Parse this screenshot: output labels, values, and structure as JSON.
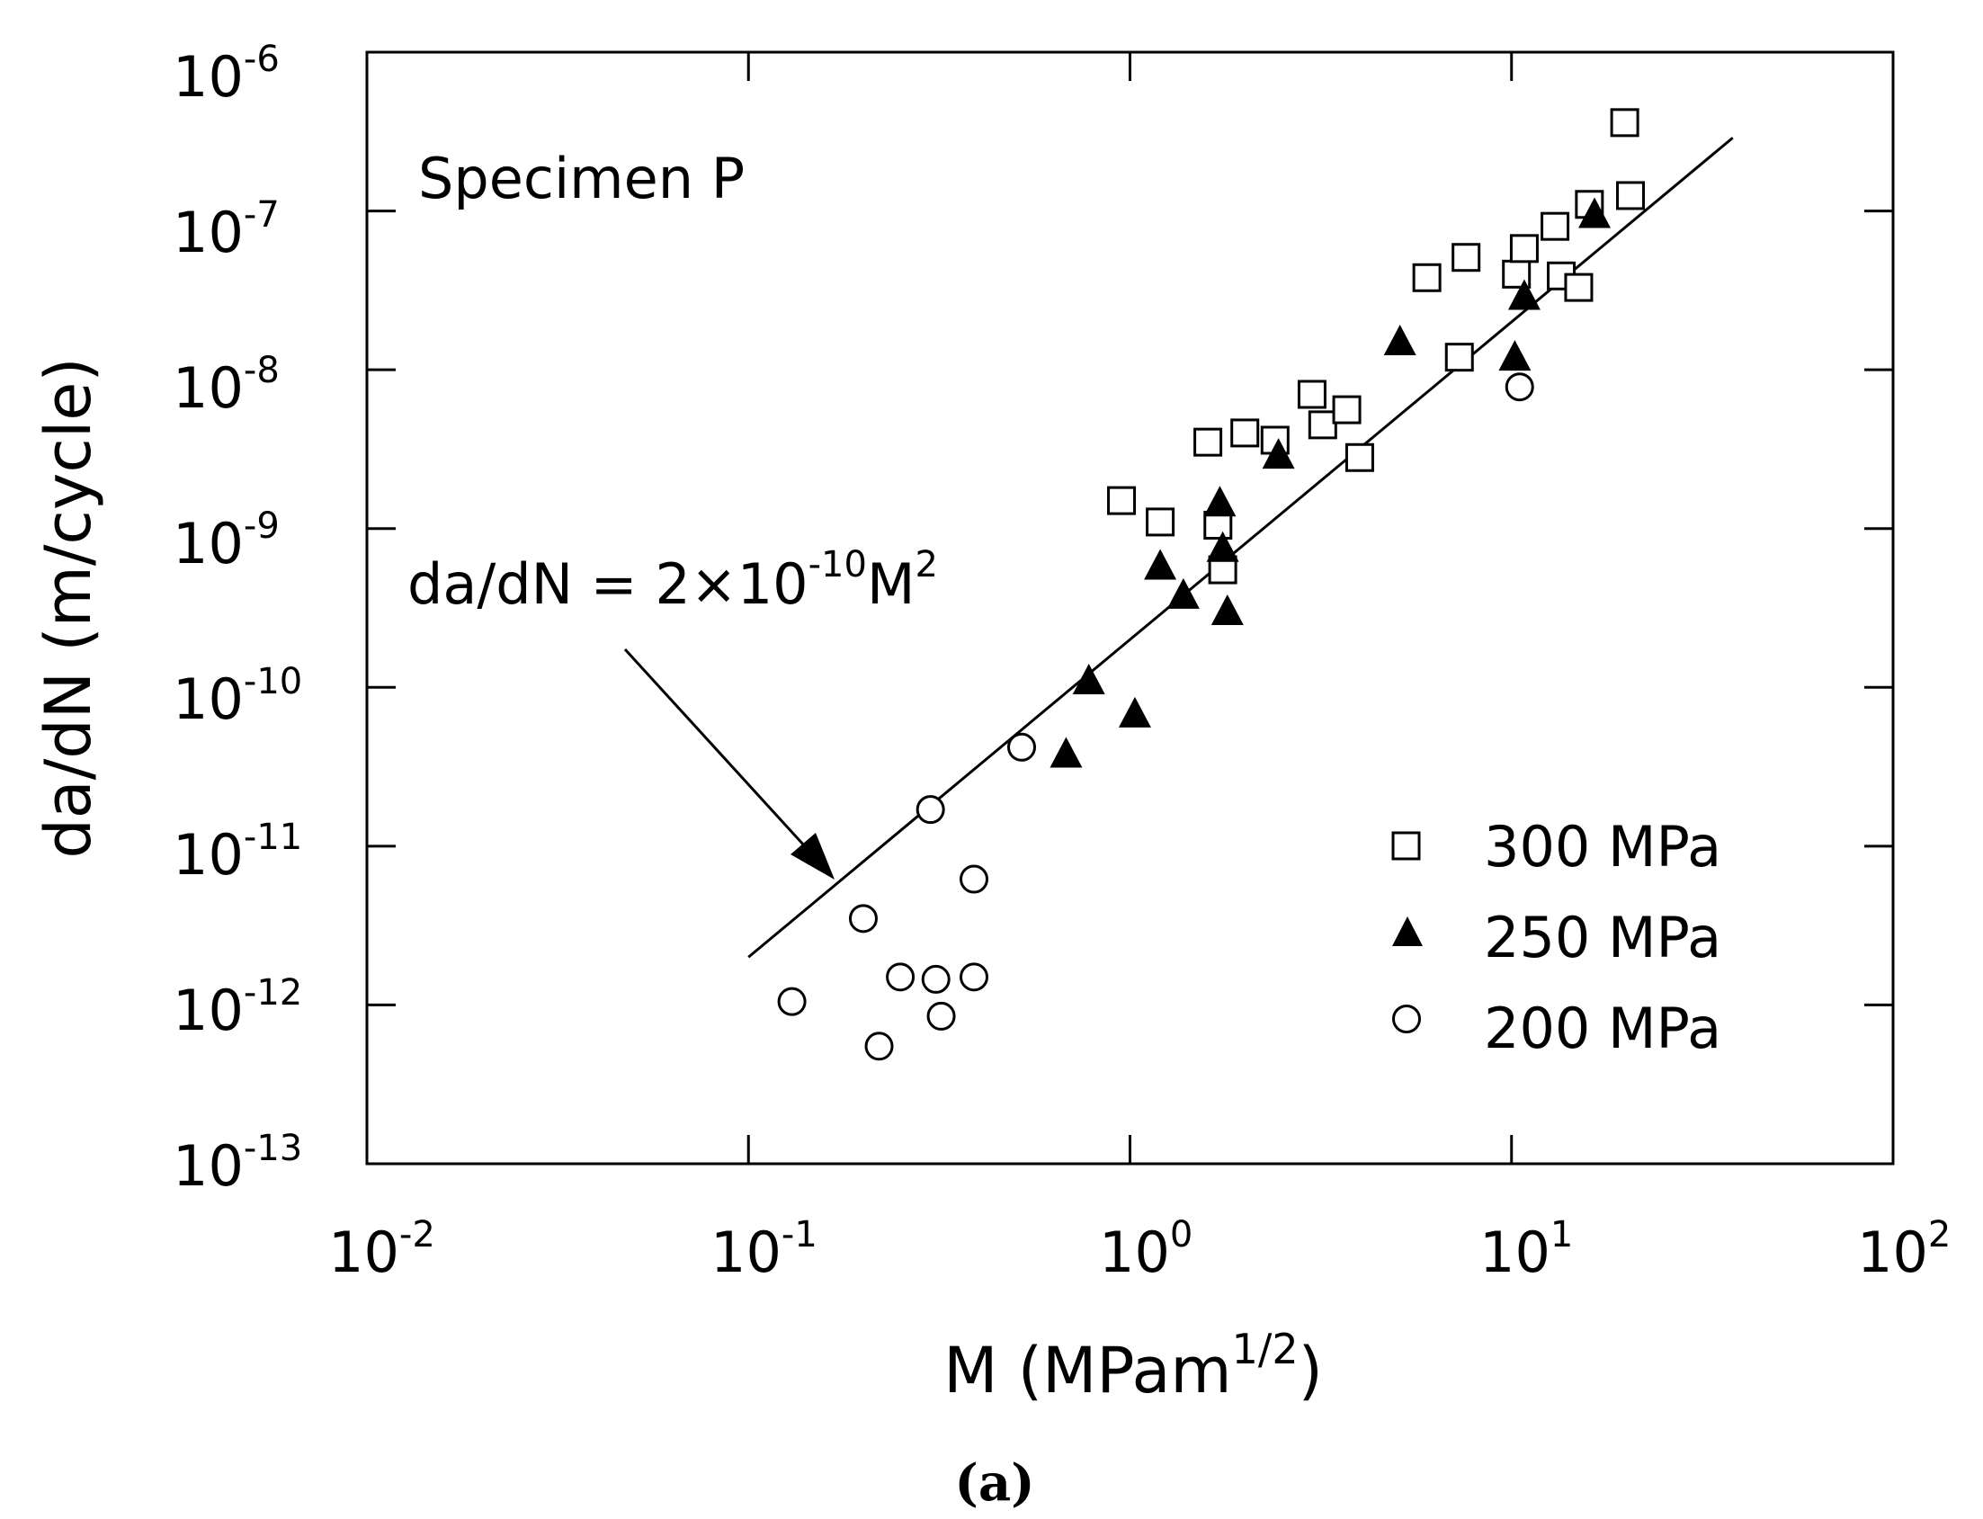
{
  "chart_data": {
    "type": "scatter",
    "x_scale": "log",
    "y_scale": "log",
    "xlim": [
      0.01,
      100
    ],
    "ylim": [
      1e-13,
      1e-06
    ],
    "x_ticks": [
      {
        "value": 0.01,
        "base": "10",
        "exp": "-2"
      },
      {
        "value": 0.1,
        "base": "10",
        "exp": "-1"
      },
      {
        "value": 1,
        "base": "10",
        "exp": "0"
      },
      {
        "value": 10,
        "base": "10",
        "exp": "1"
      },
      {
        "value": 100,
        "base": "10",
        "exp": "2"
      }
    ],
    "y_ticks": [
      {
        "value": 1e-13,
        "base": "10",
        "exp": "-13"
      },
      {
        "value": 1e-12,
        "base": "10",
        "exp": "-12"
      },
      {
        "value": 1e-11,
        "base": "10",
        "exp": "-11"
      },
      {
        "value": 1e-10,
        "base": "10",
        "exp": "-10"
      },
      {
        "value": 1e-09,
        "base": "10",
        "exp": "-9"
      },
      {
        "value": 1e-08,
        "base": "10",
        "exp": "-8"
      },
      {
        "value": 1e-07,
        "base": "10",
        "exp": "-7"
      },
      {
        "value": 1e-06,
        "base": "10",
        "exp": "-6"
      }
    ],
    "xlabel": {
      "main": "M (MPam",
      "sup": "1/2",
      "end": ")"
    },
    "ylabel": "da/dN (m/cycle)",
    "annotation": "Specimen P",
    "fit_line": {
      "label_parts": {
        "a": "da/dN = 2×10",
        "sup1": "-10",
        "b": "M",
        "sup2": "2"
      },
      "coefficient": 2e-10,
      "exponent": 2,
      "x_range": [
        0.1,
        38
      ]
    },
    "legend_position": "bottom-right",
    "series": [
      {
        "name": "300 MPa",
        "marker": "open-square",
        "points": [
          [
            0.95,
            1.5e-09
          ],
          [
            1.2,
            1.1e-09
          ],
          [
            1.6,
            3.5e-09
          ],
          [
            1.7,
            1.05e-09
          ],
          [
            1.75,
            5.5e-10
          ],
          [
            2.0,
            4e-09
          ],
          [
            2.4,
            3.6e-09
          ],
          [
            3.0,
            7e-09
          ],
          [
            3.2,
            4.5e-09
          ],
          [
            3.7,
            5.6e-09
          ],
          [
            4.0,
            2.8e-09
          ],
          [
            6.0,
            3.8e-08
          ],
          [
            7.3,
            1.2e-08
          ],
          [
            7.6,
            5.1e-08
          ],
          [
            10.3,
            4e-08
          ],
          [
            10.8,
            5.8e-08
          ],
          [
            13.0,
            8e-08
          ],
          [
            13.5,
            3.9e-08
          ],
          [
            15.0,
            3.3e-08
          ],
          [
            16.0,
            1.1e-07
          ],
          [
            19.8,
            3.6e-07
          ],
          [
            20.5,
            1.25e-07
          ]
        ]
      },
      {
        "name": "250 MPa",
        "marker": "filled-triangle",
        "points": [
          [
            0.68,
            3.8e-11
          ],
          [
            0.78,
            1.1e-10
          ],
          [
            1.03,
            6.8e-11
          ],
          [
            1.2,
            5.8e-10
          ],
          [
            1.38,
            3.8e-10
          ],
          [
            1.72,
            1.45e-09
          ],
          [
            1.75,
            7.5e-10
          ],
          [
            1.8,
            3e-10
          ],
          [
            2.45,
            2.9e-09
          ],
          [
            5.1,
            1.5e-08
          ],
          [
            10.2,
            1.2e-08
          ],
          [
            10.8,
            2.9e-08
          ],
          [
            16.5,
            9.5e-08
          ]
        ]
      },
      {
        "name": "200 MPa",
        "marker": "open-circle",
        "points": [
          [
            0.13,
            1.05e-12
          ],
          [
            0.2,
            3.5e-12
          ],
          [
            0.22,
            5.5e-13
          ],
          [
            0.25,
            1.5e-12
          ],
          [
            0.3,
            1.7e-11
          ],
          [
            0.31,
            1.45e-12
          ],
          [
            0.32,
            8.5e-13
          ],
          [
            0.39,
            6.2e-12
          ],
          [
            0.39,
            1.5e-12
          ],
          [
            0.52,
            4.2e-11
          ],
          [
            10.5,
            7.8e-09
          ]
        ]
      }
    ]
  },
  "caption": "(a)"
}
